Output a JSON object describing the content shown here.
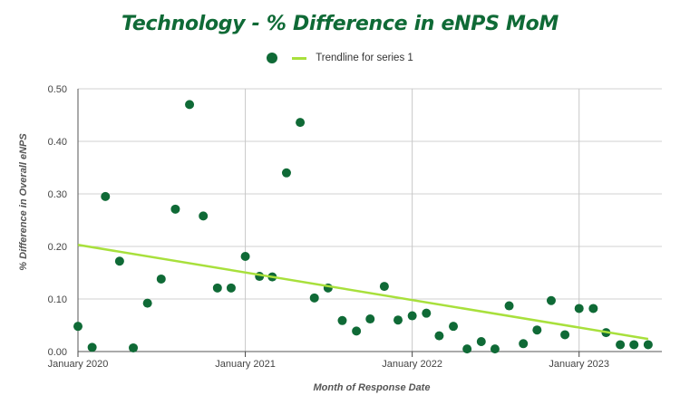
{
  "chart_data": {
    "type": "scatter",
    "title": "Technology - % Difference in eNPS MoM",
    "xlabel": "Month of Response Date",
    "ylabel": "% Difference in Overall eNPS",
    "ylim": [
      0,
      0.5
    ],
    "yticks": [
      "0.00",
      "0.10",
      "0.20",
      "0.30",
      "0.40",
      "0.50"
    ],
    "xticks": [
      "January 2020",
      "January 2021",
      "January 2022",
      "January 2023"
    ],
    "legend": [
      {
        "label": "",
        "marker": "dot",
        "color": "#0f6a36"
      },
      {
        "label": "Trendline for series 1",
        "marker": "line",
        "color": "#a8e03c"
      }
    ],
    "legend_position": "top-center",
    "grid": "vertical at year ticks, horizontal at y ticks",
    "colors": {
      "points": "#0f6a36",
      "trendline": "#a8e03c",
      "title": "#0f6a36"
    },
    "series": [
      {
        "x": [
          "2020-01",
          "2020-02",
          "2020-03",
          "2020-04",
          "2020-05",
          "2020-06",
          "2020-07",
          "2020-08",
          "2020-09",
          "2020-10",
          "2020-11",
          "2020-12",
          "2021-01",
          "2021-02",
          "2021-03",
          "2021-04",
          "2021-05",
          "2021-06",
          "2021-07",
          "2021-08",
          "2021-09",
          "2021-10",
          "2021-11",
          "2021-12",
          "2022-01",
          "2022-02",
          "2022-03",
          "2022-04",
          "2022-05",
          "2022-06",
          "2022-07",
          "2022-08",
          "2022-09",
          "2022-10",
          "2022-11",
          "2022-12",
          "2023-01",
          "2023-02",
          "2023-03",
          "2023-04",
          "2023-05",
          "2023-06"
        ],
        "values": [
          0.048,
          0.008,
          0.295,
          0.172,
          0.007,
          0.092,
          0.138,
          0.271,
          0.47,
          0.258,
          0.121,
          0.121,
          0.181,
          0.143,
          0.142,
          0.34,
          0.436,
          0.102,
          0.121,
          0.059,
          0.039,
          0.062,
          0.124,
          0.06,
          0.068,
          0.073,
          0.03,
          0.048,
          0.005,
          0.019,
          0.005,
          0.087,
          0.015,
          0.041,
          0.097,
          0.032,
          0.082,
          0.082,
          0.036,
          0.013,
          0.013,
          0.013
        ]
      }
    ],
    "trendline": {
      "x": [
        "2020-01",
        "2023-06"
      ],
      "values": [
        0.203,
        0.024
      ]
    }
  }
}
